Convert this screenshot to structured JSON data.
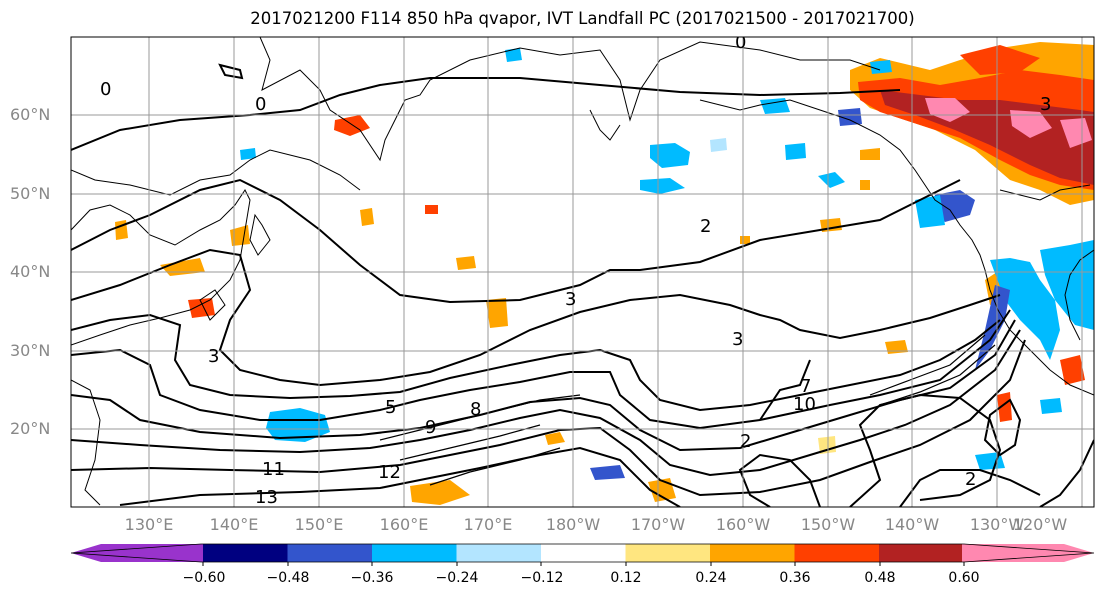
{
  "title": "2017021200 F114 850 hPa qvapor, IVT Landfall PC (2017021500 - 2017021700)",
  "map": {
    "lat_labels": [
      "60°N",
      "50°N",
      "40°N",
      "30°N",
      "20°N"
    ],
    "lon_labels": [
      "130°E",
      "140°E",
      "150°E",
      "160°E",
      "170°E",
      "180°W",
      "170°W",
      "160°W",
      "150°W",
      "140°W",
      "130°W",
      "120°W"
    ],
    "contour_labels": [
      "0",
      "0",
      "0",
      "2",
      "3",
      "3",
      "3",
      "5",
      "7",
      "8",
      "9",
      "10",
      "11",
      "12",
      "13",
      "2",
      "2",
      "3"
    ]
  },
  "colorbar": {
    "colors": [
      "#9933cc",
      "#000080",
      "#3355cc",
      "#00bbff",
      "#b3e5ff",
      "#ffffff",
      "#ffe680",
      "#ffa500",
      "#ff4000",
      "#b22222",
      "#ff88b0"
    ],
    "tick_labels": [
      "−0.60",
      "−0.48",
      "−0.36",
      "−0.24",
      "−0.12",
      "0.12",
      "0.24",
      "0.36",
      "0.48",
      "0.60"
    ]
  }
}
